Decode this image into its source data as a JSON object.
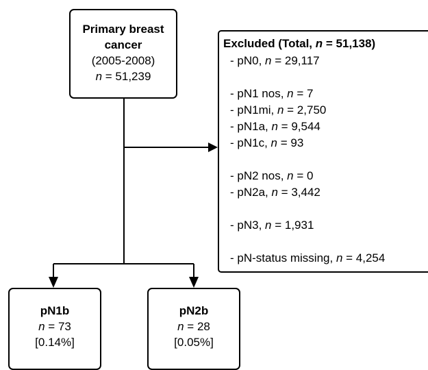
{
  "primary": {
    "title": "Primary breast cancer",
    "period": "(2005-2008)",
    "var": "n",
    "count": " = 51,239"
  },
  "excluded": {
    "title_prefix": "Excluded (Total, ",
    "title_var": "n",
    "title_suffix": " = 51,138)",
    "groups": [
      [
        {
          "label": "- pN0, ",
          "var": "n",
          "count": " = 29,117"
        }
      ],
      [
        {
          "label": "- pN1 nos, ",
          "var": "n",
          "count": " = 7"
        },
        {
          "label": "- pN1mi, ",
          "var": "n",
          "count": " = 2,750"
        },
        {
          "label": "- pN1a, ",
          "var": "n",
          "count": " = 9,544"
        },
        {
          "label": "- pN1c, ",
          "var": "n",
          "count": " = 93"
        }
      ],
      [
        {
          "label": "- pN2 nos, ",
          "var": "n",
          "count": " = 0"
        },
        {
          "label": "- pN2a, ",
          "var": "n",
          "count": " = 3,442"
        }
      ],
      [
        {
          "label": "- pN3, ",
          "var": "n",
          "count": " = 1,931"
        }
      ],
      [
        {
          "label": "- pN-status missing, ",
          "var": "n",
          "count": " = 4,254"
        }
      ]
    ]
  },
  "outcomes": [
    {
      "title": "pN1b",
      "var": "n",
      "count": " = 73",
      "percent": "[0.14%]"
    },
    {
      "title": "pN2b",
      "var": "n",
      "count": " = 28",
      "percent": "[0.05%]"
    }
  ]
}
